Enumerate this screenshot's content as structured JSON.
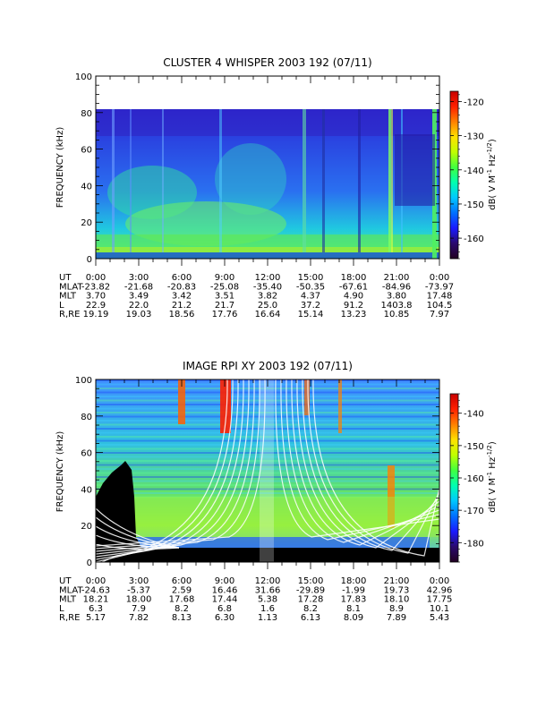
{
  "chart_data": [
    {
      "type": "heatmap",
      "title": "CLUSTER 4 WHISPER 2003 192 (07/11)",
      "ylabel": "FREQUENCY (kHz)",
      "ylim": [
        0,
        100
      ],
      "yticks": [
        "0",
        "20",
        "40",
        "60",
        "80",
        "100"
      ],
      "data_top_khz": 80,
      "colorbar": {
        "label_text": "dB( V M",
        "label_sup1": "-1",
        "label_mid": " Hz",
        "label_sup2": "-1/2",
        "label_end": ")",
        "ticks": [
          "-120",
          "-130",
          "-140",
          "-150",
          "-160"
        ],
        "tick_values": [
          -120,
          -130,
          -140,
          -150,
          -160
        ],
        "range": [
          -166,
          -117
        ]
      },
      "colorbar_colors": [
        "#220022",
        "#2a0a6e",
        "#1a1aff",
        "#0070ff",
        "#00c8ff",
        "#00ffb0",
        "#40ff40",
        "#c0ff00",
        "#ffe000",
        "#ff8000",
        "#ff2000",
        "#c80000"
      ],
      "rows": [
        {
          "label": "UT",
          "values": [
            "0:00",
            "3:00",
            "6:00",
            "9:00",
            "12:00",
            "15:00",
            "18:00",
            "21:00",
            "0:00"
          ]
        },
        {
          "label": "MLAT",
          "values": [
            "-23.82",
            "-21.68",
            "-20.83",
            "-25.08",
            "-35.40",
            "-50.35",
            "-67.61",
            "-84.96",
            "-73.97"
          ]
        },
        {
          "label": "MLT",
          "values": [
            "3.70",
            "3.49",
            "3.42",
            "3.51",
            "3.82",
            "4.37",
            "4.90",
            "3.80",
            "17.48"
          ]
        },
        {
          "label": "L",
          "values": [
            "22.9",
            "22.0",
            "21.2",
            "21.7",
            "25.0",
            "37.2",
            "91.2",
            "1403.8",
            "104.5"
          ]
        },
        {
          "label": "R,RE",
          "values": [
            "19.19",
            "19.03",
            "18.56",
            "17.76",
            "16.64",
            "15.14",
            "13.23",
            "10.85",
            "7.97"
          ]
        }
      ]
    },
    {
      "type": "heatmap",
      "title": "IMAGE RPI XY 2003 192 (07/11)",
      "ylabel": "FREQUENCY (kHz)",
      "ylim": [
        0,
        100
      ],
      "yticks": [
        "0",
        "20",
        "40",
        "60",
        "80",
        "100"
      ],
      "colorbar": {
        "label_text": "dB( V M",
        "label_sup1": "-1",
        "label_mid": " Hz",
        "label_sup2": "-1/2",
        "label_end": ")",
        "ticks": [
          "-140",
          "-150",
          "-160",
          "-170",
          "-180"
        ],
        "tick_values": [
          -140,
          -150,
          -160,
          -170,
          -180
        ],
        "range": [
          -186,
          -134
        ]
      },
      "colorbar_colors": [
        "#220022",
        "#2a0a6e",
        "#1a1aff",
        "#0070ff",
        "#00c8ff",
        "#00ffb0",
        "#40ff40",
        "#c0ff00",
        "#ffe000",
        "#ff8000",
        "#ff2000",
        "#c80000"
      ],
      "rows": [
        {
          "label": "UT",
          "values": [
            "0:00",
            "3:00",
            "6:00",
            "9:00",
            "12:00",
            "15:00",
            "18:00",
            "21:00",
            "0:00"
          ]
        },
        {
          "label": "MLAT",
          "values": [
            "-24.63",
            "-5.37",
            "2.59",
            "16.46",
            "31.66",
            "-29.89",
            "-1.99",
            "19.73",
            "42.96"
          ]
        },
        {
          "label": "MLT",
          "values": [
            "18.21",
            "18.00",
            "17.68",
            "17.44",
            "5.38",
            "17.28",
            "17.83",
            "18.10",
            "17.75"
          ]
        },
        {
          "label": "L",
          "values": [
            "6.3",
            "7.9",
            "8.2",
            "6.8",
            "1.6",
            "8.2",
            "8.1",
            "8.9",
            "10.1"
          ]
        },
        {
          "label": "R,RE",
          "values": [
            "5.17",
            "7.82",
            "8.13",
            "6.30",
            "1.13",
            "6.13",
            "8.09",
            "7.89",
            "5.43"
          ]
        }
      ]
    }
  ]
}
